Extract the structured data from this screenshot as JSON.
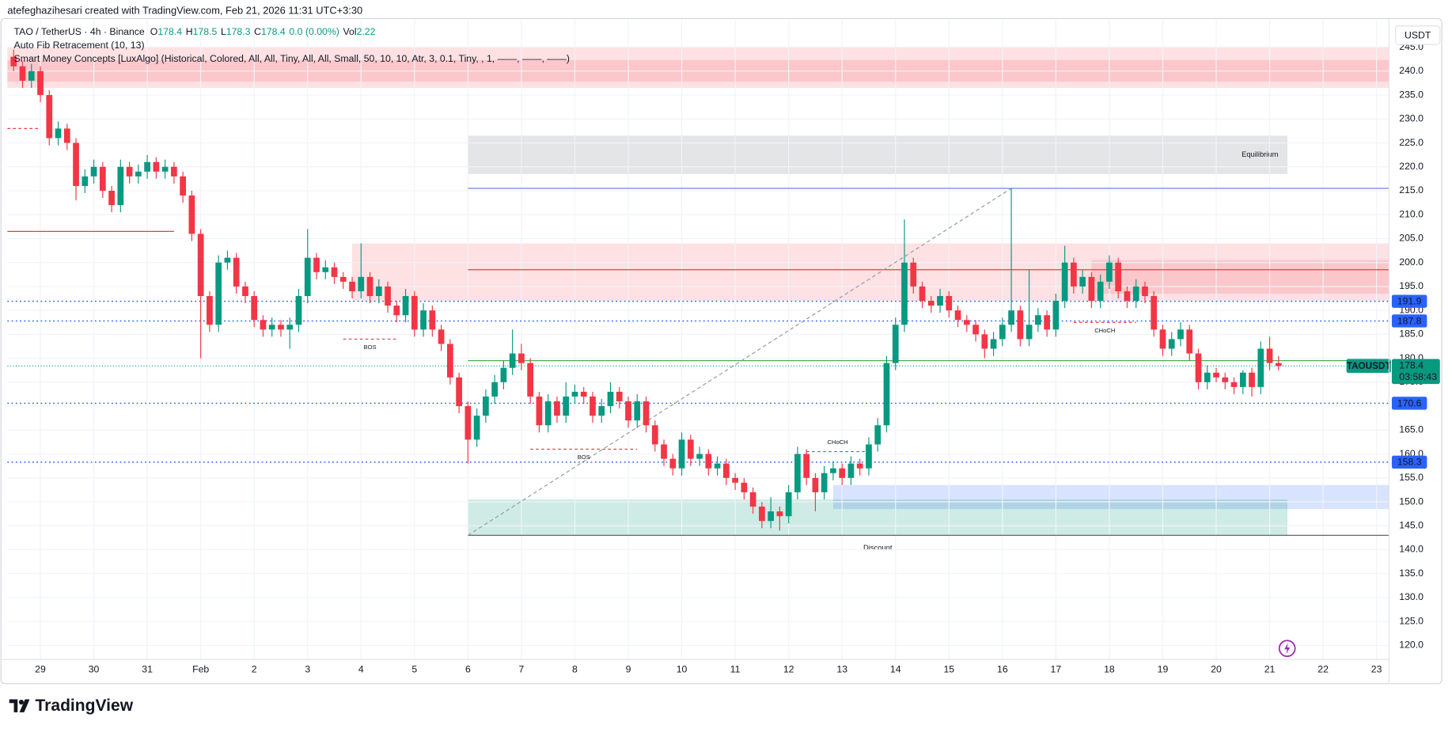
{
  "chart_data": {
    "type": "candlestick",
    "watermark": "atefeghazihesari created with TradingView.com, Feb 21, 2026 11:31 UTC+3:30",
    "symbol": "TAO / TetherUS · 4h · Binance",
    "legend_values": [
      {
        "key": "O",
        "value": 178.4
      },
      {
        "key": "H",
        "value": 178.5
      },
      {
        "key": "L",
        "value": 178.3
      },
      {
        "key": "C",
        "value": 178.4
      }
    ],
    "change": "0.0 (0.00%)",
    "volume": {
      "key": "Vol",
      "value": 2.22
    },
    "indicators": [
      "Auto Fib Retracement (10, 13)",
      "Smart Money Concepts [LuxAlgo] (Historical, Colored, All, All, Tiny, All, All, Small, 50, 10, 10, Atr, 3, 0.1, Tiny, , 1, ——, ——, ——)"
    ],
    "currency": "USDT",
    "brand": "TradingView",
    "up_color": "#089981",
    "down_color": "#f23645",
    "grid": true,
    "xlim": [
      -0.7,
      154.4
    ],
    "ylim": [
      112.6,
      250.6
    ],
    "xticks": [
      {
        "value": 3,
        "label": "29"
      },
      {
        "value": 9,
        "label": "30"
      },
      {
        "value": 15,
        "label": "31"
      },
      {
        "value": 21,
        "label": "Feb"
      },
      {
        "value": 27,
        "label": "2"
      },
      {
        "value": 33,
        "label": "3"
      },
      {
        "value": 39,
        "label": "4"
      },
      {
        "value": 45,
        "label": "5"
      },
      {
        "value": 51,
        "label": "6"
      },
      {
        "value": 57,
        "label": "7"
      },
      {
        "value": 63,
        "label": "8"
      },
      {
        "value": 69,
        "label": "9"
      },
      {
        "value": 75,
        "label": "10"
      },
      {
        "value": 81,
        "label": "11"
      },
      {
        "value": 87,
        "label": "12"
      },
      {
        "value": 93,
        "label": "13"
      },
      {
        "value": 99,
        "label": "14"
      },
      {
        "value": 105,
        "label": "15"
      },
      {
        "value": 111,
        "label": "16"
      },
      {
        "value": 117,
        "label": "17"
      },
      {
        "value": 123,
        "label": "18"
      },
      {
        "value": 129,
        "label": "19"
      },
      {
        "value": 135,
        "label": "20"
      },
      {
        "value": 141,
        "label": "21"
      },
      {
        "value": 147,
        "label": "22"
      },
      {
        "value": 153,
        "label": "23"
      }
    ],
    "yticks": [
      {
        "value": 120,
        "label": "120.0"
      },
      {
        "value": 125,
        "label": "125.0"
      },
      {
        "value": 130,
        "label": "130.0"
      },
      {
        "value": 135,
        "label": "135.0"
      },
      {
        "value": 140,
        "label": "140.0"
      },
      {
        "value": 145,
        "label": "145.0"
      },
      {
        "value": 150,
        "label": "150.0"
      },
      {
        "value": 155,
        "label": "155.0"
      },
      {
        "value": 160,
        "label": "160.0"
      },
      {
        "value": 165,
        "label": "165.0"
      },
      {
        "value": 170,
        "label": "170.0"
      },
      {
        "value": 175,
        "label": "175.0"
      },
      {
        "value": 180,
        "label": "180.0"
      },
      {
        "value": 185,
        "label": "185.0"
      },
      {
        "value": 190,
        "label": "190.0"
      },
      {
        "value": 195,
        "label": "195.0"
      },
      {
        "value": 200,
        "label": "200.0"
      },
      {
        "value": 205,
        "label": "205.0"
      },
      {
        "value": 210,
        "label": "210.0"
      },
      {
        "value": 215,
        "label": "215.0"
      },
      {
        "value": 220,
        "label": "220.0"
      },
      {
        "value": 225,
        "label": "225.0"
      },
      {
        "value": 230,
        "label": "230.0"
      },
      {
        "value": 235,
        "label": "235.0"
      },
      {
        "value": 240,
        "label": "240.0"
      },
      {
        "value": 245,
        "label": "245.0"
      }
    ],
    "zones": [
      {
        "top": 245,
        "bottom": 236.5,
        "x0": -0.7,
        "x1": 154.4,
        "color": "rgba(242,54,69,0.15)"
      },
      {
        "top": 242.3,
        "bottom": 237.8,
        "x0": -0.7,
        "x1": 154.4,
        "color": "rgba(242,54,69,0.15)"
      },
      {
        "top": 226.5,
        "bottom": 218.5,
        "x0": 51,
        "x1": 143,
        "color": "rgba(120,123,134,0.2)",
        "label": "Equilibrium"
      },
      {
        "top": 204,
        "bottom": 192,
        "x0": 38,
        "x1": 154.4,
        "color": "rgba(242,54,69,0.15)"
      },
      {
        "top": 200.5,
        "bottom": 193.5,
        "x0": 121,
        "x1": 154.4,
        "color": "rgba(242,54,69,0.15)"
      },
      {
        "top": 153.5,
        "bottom": 148.5,
        "x0": 92,
        "x1": 154.4,
        "color": "rgba(41,98,255,0.18)"
      },
      {
        "top": 150.5,
        "bottom": 143,
        "x0": 51,
        "x1": 143,
        "color": "rgba(8,153,129,0.2)",
        "label": "Discount"
      }
    ],
    "lines": [
      {
        "value": 206.5,
        "x0": -0.7,
        "x1": 18,
        "color": "#f23645",
        "dash": "none"
      },
      {
        "value": 198.5,
        "x0": 51,
        "x1": 154.4,
        "color": "#f23645",
        "dash": "none"
      },
      {
        "value": 215.5,
        "x0": 51,
        "x1": 154.4,
        "color": "#5b7bd5",
        "dash": "none"
      },
      {
        "value": 179.5,
        "x0": 51,
        "x1": 154.4,
        "color": "#4caf50",
        "dash": "none"
      },
      {
        "value": 143,
        "x0": 51,
        "x1": 154.4,
        "color": "#555",
        "dash": "none"
      },
      {
        "value": 228,
        "x0": -0.7,
        "x1": 3,
        "color": "#f23645",
        "dash": "3,3"
      }
    ],
    "levels": [
      {
        "value": 191.9,
        "color": "#2962ff"
      },
      {
        "value": 187.8,
        "color": "#2962ff"
      },
      {
        "value": 170.6,
        "color": "#2962ff"
      },
      {
        "value": 158.3,
        "color": "#2962ff"
      }
    ],
    "structures": [
      {
        "label": "BOS",
        "value": 184,
        "x0": 37,
        "x1": 43,
        "color": "#f23645"
      },
      {
        "label": "BOS",
        "value": 161,
        "x0": 58,
        "x1": 70,
        "color": "#f23645"
      },
      {
        "label": "CHoCH",
        "value": 160.5,
        "x0": 89,
        "x1": 96,
        "color": "#089981"
      },
      {
        "label": "CHoCH",
        "value": 187.5,
        "x0": 119,
        "x1": 126,
        "color": "#f23645"
      }
    ],
    "fib_line": {
      "x0": 51,
      "y0": 143,
      "x1": 112,
      "y1": 215.5
    },
    "last_price": {
      "symbol": "TAOUSDT",
      "value": 178.4,
      "countdown": "03:58:43"
    },
    "ohlc": [
      [
        243,
        244.5,
        240,
        241
      ],
      [
        241,
        242,
        236.5,
        238
      ],
      [
        238,
        241.5,
        236.5,
        240
      ],
      [
        240,
        241,
        233.5,
        235
      ],
      [
        235,
        236,
        224.5,
        226
      ],
      [
        226,
        229.5,
        224.5,
        228
      ],
      [
        228,
        229,
        223.5,
        225
      ],
      [
        225,
        226,
        213,
        216
      ],
      [
        216,
        219.5,
        214.5,
        218
      ],
      [
        218,
        221.5,
        216.5,
        220
      ],
      [
        220,
        221,
        213.5,
        215
      ],
      [
        215,
        216,
        210.5,
        212
      ],
      [
        212,
        221.5,
        210.5,
        220
      ],
      [
        220,
        221,
        216.5,
        218
      ],
      [
        218,
        220.5,
        216.5,
        219
      ],
      [
        219,
        222.5,
        217.5,
        221
      ],
      [
        221,
        222,
        217.5,
        219
      ],
      [
        219,
        221.5,
        217.5,
        220
      ],
      [
        220,
        221,
        216.5,
        218
      ],
      [
        218,
        219,
        212.5,
        214
      ],
      [
        214,
        215,
        204.5,
        206
      ],
      [
        206,
        207,
        180,
        193
      ],
      [
        193,
        194,
        185.5,
        187
      ],
      [
        187,
        201.5,
        185.5,
        200
      ],
      [
        200,
        202.5,
        198.5,
        201
      ],
      [
        201,
        202,
        193.5,
        195
      ],
      [
        195,
        196,
        191.5,
        193
      ],
      [
        193,
        194,
        186.5,
        188
      ],
      [
        188,
        189,
        184.5,
        186
      ],
      [
        186,
        188.5,
        184.5,
        187
      ],
      [
        187,
        188,
        184.5,
        186
      ],
      [
        186,
        188.5,
        182,
        187
      ],
      [
        187,
        194.5,
        185.5,
        193
      ],
      [
        193,
        207,
        191.5,
        201
      ],
      [
        201,
        202,
        196.5,
        198
      ],
      [
        198,
        200.5,
        196.5,
        199
      ],
      [
        199,
        200,
        195.5,
        197
      ],
      [
        197,
        198,
        194.5,
        196
      ],
      [
        196,
        197,
        192.5,
        194
      ],
      [
        194,
        204,
        192.5,
        197
      ],
      [
        197,
        198,
        191.5,
        193
      ],
      [
        193,
        196.5,
        191.5,
        195
      ],
      [
        195,
        196,
        189.5,
        191
      ],
      [
        191,
        192,
        187.5,
        189
      ],
      [
        189,
        194.5,
        187.5,
        193
      ],
      [
        193,
        194,
        184.5,
        186
      ],
      [
        186,
        191.5,
        184.5,
        190
      ],
      [
        190,
        191,
        184.5,
        186
      ],
      [
        186,
        187,
        181.5,
        183
      ],
      [
        183,
        184,
        174.5,
        176
      ],
      [
        176,
        177,
        168.5,
        170
      ],
      [
        170,
        171,
        158,
        163
      ],
      [
        163,
        169.5,
        161.5,
        168
      ],
      [
        168,
        173.5,
        166.5,
        172
      ],
      [
        172,
        176.5,
        170.5,
        175
      ],
      [
        175,
        179.5,
        173.5,
        178
      ],
      [
        178,
        186,
        176.5,
        181
      ],
      [
        181,
        183,
        177.5,
        179
      ],
      [
        179,
        180,
        170.5,
        172
      ],
      [
        172,
        173,
        164.5,
        166
      ],
      [
        166,
        172.5,
        164.5,
        171
      ],
      [
        171,
        172,
        166.5,
        168
      ],
      [
        168,
        175,
        166.5,
        172
      ],
      [
        172,
        174.5,
        170.5,
        173
      ],
      [
        173,
        174,
        170.5,
        172
      ],
      [
        172,
        173,
        166.5,
        168
      ],
      [
        168,
        171.5,
        166.5,
        170
      ],
      [
        170,
        175,
        168.5,
        173
      ],
      [
        173,
        174,
        169.5,
        171
      ],
      [
        171,
        172,
        165.5,
        167
      ],
      [
        167,
        172.5,
        165.5,
        171
      ],
      [
        171,
        172,
        164.5,
        166
      ],
      [
        166,
        167,
        160.5,
        162
      ],
      [
        162,
        163,
        157.5,
        159
      ],
      [
        159,
        160,
        155.5,
        157
      ],
      [
        157,
        164.5,
        155.5,
        163
      ],
      [
        163,
        164,
        157.5,
        159
      ],
      [
        159,
        161.5,
        157.5,
        160
      ],
      [
        160,
        161,
        155.5,
        157
      ],
      [
        157,
        159.5,
        155.5,
        158
      ],
      [
        158,
        159,
        153.5,
        155
      ],
      [
        155,
        156,
        152.5,
        154
      ],
      [
        154,
        155,
        150.5,
        152
      ],
      [
        152,
        153,
        147.5,
        149
      ],
      [
        149,
        150,
        144.5,
        146
      ],
      [
        146,
        151,
        144.5,
        148
      ],
      [
        148,
        149,
        144,
        147
      ],
      [
        147,
        153.5,
        145.5,
        152
      ],
      [
        152,
        161.5,
        150.5,
        160
      ],
      [
        160,
        161,
        153.5,
        155
      ],
      [
        155,
        156,
        148,
        152
      ],
      [
        152,
        157.5,
        150.5,
        156
      ],
      [
        156,
        158.5,
        154.5,
        157
      ],
      [
        157,
        158,
        153.5,
        155
      ],
      [
        155,
        159.5,
        153.5,
        158
      ],
      [
        158,
        159,
        155.5,
        157
      ],
      [
        157,
        163.5,
        155.5,
        162
      ],
      [
        162,
        167.5,
        160.5,
        166
      ],
      [
        166,
        180.5,
        164.5,
        179
      ],
      [
        179,
        188.5,
        177.5,
        187
      ],
      [
        187,
        209,
        185.5,
        200
      ],
      [
        200,
        201,
        193.5,
        195
      ],
      [
        195,
        196,
        190.5,
        192
      ],
      [
        192,
        193,
        189.5,
        191
      ],
      [
        191,
        194.5,
        189.5,
        193
      ],
      [
        193,
        194,
        188.5,
        190
      ],
      [
        190,
        191,
        186.5,
        188
      ],
      [
        188,
        189,
        185.5,
        187
      ],
      [
        187,
        188,
        183.5,
        185
      ],
      [
        185,
        186,
        180,
        182
      ],
      [
        182,
        185.5,
        180.5,
        184
      ],
      [
        184,
        188.5,
        182.5,
        187
      ],
      [
        187,
        215.5,
        185.5,
        190
      ],
      [
        190,
        191,
        182.5,
        184
      ],
      [
        184,
        198.5,
        182.5,
        187
      ],
      [
        187,
        190.5,
        185.5,
        189
      ],
      [
        189,
        190,
        184.5,
        186
      ],
      [
        186,
        193.5,
        184.5,
        192
      ],
      [
        192,
        203.5,
        190.5,
        200
      ],
      [
        200,
        201,
        193.5,
        195
      ],
      [
        195,
        198.5,
        193.5,
        197
      ],
      [
        197,
        198,
        190.5,
        192
      ],
      [
        192,
        197.5,
        190.5,
        196
      ],
      [
        196,
        201.5,
        194.5,
        200
      ],
      [
        200,
        201,
        192.5,
        194
      ],
      [
        194,
        195,
        190.5,
        192
      ],
      [
        192,
        196.5,
        190.5,
        195
      ],
      [
        195,
        196,
        191.5,
        193
      ],
      [
        193,
        194,
        184.5,
        186
      ],
      [
        186,
        187,
        180.5,
        182
      ],
      [
        182,
        185.5,
        180.5,
        184
      ],
      [
        184,
        187.5,
        182.5,
        186
      ],
      [
        186,
        187,
        179.5,
        181
      ],
      [
        181,
        182,
        173.5,
        175
      ],
      [
        175,
        178.5,
        173.5,
        177
      ],
      [
        177,
        178,
        175,
        176
      ],
      [
        176,
        177,
        173.5,
        175
      ],
      [
        175,
        176,
        172.5,
        174
      ],
      [
        174,
        177.5,
        172.5,
        177
      ],
      [
        177,
        178,
        172,
        174
      ],
      [
        174,
        183.5,
        172.5,
        182
      ],
      [
        182,
        184.5,
        177.5,
        179
      ],
      [
        179,
        180.5,
        177.5,
        178.4
      ]
    ]
  }
}
